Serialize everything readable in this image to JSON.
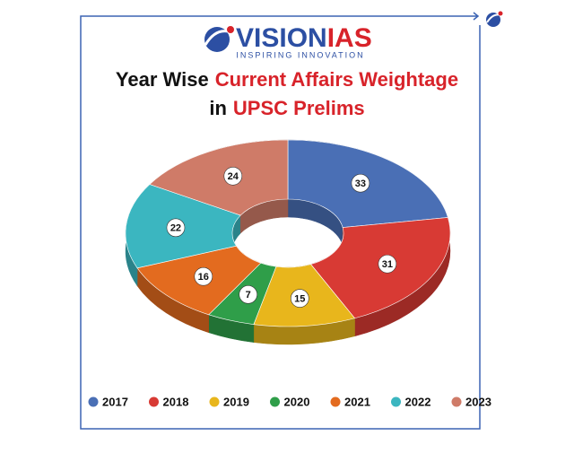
{
  "logo": {
    "brand_part1": "VISION",
    "brand_part2": "IAS",
    "tagline": "INSPIRING INNOVATION"
  },
  "chart_data": {
    "type": "donut",
    "title_parts": [
      "Year Wise",
      "Current Affairs Weightage",
      "in",
      "UPSC Prelims"
    ],
    "categories": [
      "2017",
      "2018",
      "2019",
      "2020",
      "2021",
      "2022",
      "2023"
    ],
    "values": [
      33,
      31,
      15,
      7,
      16,
      22,
      24
    ],
    "colors": [
      "#4a6fb5",
      "#d83a34",
      "#e8b61c",
      "#2f9e49",
      "#e36b1f",
      "#3bb6c0",
      "#cf7b68"
    ],
    "legend": "bottom"
  }
}
